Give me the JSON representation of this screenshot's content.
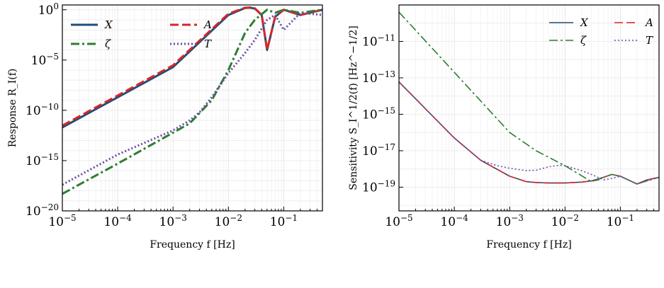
{
  "chart_data": [
    {
      "type": "line",
      "title": "",
      "xlabel": "Frequency f [Hz]",
      "ylabel": "Response R_I(f)",
      "x_scale": "log",
      "y_scale": "log",
      "xlim": [
        1e-05,
        0.5
      ],
      "ylim": [
        1e-20,
        3.0
      ],
      "x_ticks": [
        1e-05,
        0.0001,
        0.001,
        0.01,
        0.1
      ],
      "x_tick_labels": [
        "10^−5",
        "10^−4",
        "10^−3",
        "10^−2",
        "10^−1"
      ],
      "y_ticks": [
        1e-20,
        1e-15,
        1e-10,
        1e-05,
        1
      ],
      "y_tick_labels": [
        "10^−20",
        "10^−15",
        "10^−10",
        "10^−5",
        "10^0"
      ],
      "grid": true,
      "legend_position": "top-left",
      "series": [
        {
          "name": "X",
          "color": "#1f4e79",
          "dash": "solid",
          "x": [
            1e-05,
            0.0001,
            0.001,
            0.01,
            0.02,
            0.025,
            0.03,
            0.04,
            0.05,
            0.07,
            0.1,
            0.2,
            0.5
          ],
          "y": [
            2e-12,
            2e-09,
            2e-06,
            0.3,
            1.5,
            1.6,
            1.3,
            0.3,
            0.0001,
            0.2,
            1.0,
            0.3,
            1.0
          ]
        },
        {
          "name": "A",
          "color": "#d62728",
          "dash": "dashed",
          "x": [
            1e-05,
            0.0001,
            0.001,
            0.01,
            0.02,
            0.025,
            0.03,
            0.04,
            0.05,
            0.07,
            0.1,
            0.2,
            0.5
          ],
          "y": [
            3e-12,
            3e-09,
            3e-06,
            0.4,
            1.6,
            1.7,
            1.4,
            0.3,
            0.0001,
            0.2,
            1.0,
            0.3,
            1.0
          ]
        },
        {
          "name": "ζ",
          "color": "#2e7d32",
          "dash": "dashdot",
          "x": [
            1e-05,
            0.0001,
            0.001,
            0.002,
            0.005,
            0.01,
            0.02,
            0.03,
            0.05,
            0.07,
            0.1,
            0.2,
            0.5
          ],
          "y": [
            5e-19,
            5e-16,
            6e-13,
            5e-12,
            1e-09,
            1e-06,
            0.005,
            0.1,
            1.0,
            0.5,
            1.0,
            0.5,
            1.0
          ]
        },
        {
          "name": "T",
          "color": "#6a4fa3",
          "dash": "dotted",
          "x": [
            1e-05,
            0.0001,
            0.001,
            0.002,
            0.003,
            0.005,
            0.01,
            0.02,
            0.03,
            0.05,
            0.07,
            0.1,
            0.2,
            0.5
          ],
          "y": [
            4e-18,
            4e-15,
            1e-12,
            1e-11,
            6e-11,
            2e-09,
            5e-07,
            5e-05,
            0.001,
            0.1,
            0.3,
            0.01,
            0.5,
            0.3
          ]
        }
      ]
    },
    {
      "type": "line",
      "title": "",
      "xlabel": "Frequency f [Hz]",
      "ylabel": "Sensitivity S_I^1/2(f) [Hz^−1/2]",
      "x_scale": "log",
      "y_scale": "log",
      "xlim": [
        1e-05,
        0.5
      ],
      "ylim": [
        5e-21,
        1e-09
      ],
      "x_ticks": [
        1e-05,
        0.0001,
        0.001,
        0.01,
        0.1
      ],
      "x_tick_labels": [
        "10^−5",
        "10^−4",
        "10^−3",
        "10^−2",
        "10^−1"
      ],
      "y_ticks": [
        1e-19,
        1e-17,
        1e-15,
        1e-13,
        1e-11
      ],
      "y_tick_labels": [
        "10^−19",
        "10^−17",
        "10^−15",
        "10^−13",
        "10^−11"
      ],
      "grid": true,
      "legend_position": "top-right",
      "series": [
        {
          "name": "X",
          "color": "#1f4e79",
          "dash": "solid",
          "x": [
            1e-05,
            3e-05,
            0.0001,
            0.0003,
            0.001,
            0.002,
            0.003,
            0.005,
            0.01,
            0.02,
            0.03,
            0.05,
            0.07,
            0.1,
            0.2,
            0.3,
            0.5
          ],
          "y": [
            6e-14,
            2e-15,
            5e-17,
            3e-18,
            4e-19,
            2e-19,
            1.8e-19,
            1.7e-19,
            1.7e-19,
            1.9e-19,
            2.2e-19,
            3.5e-19,
            5e-19,
            4e-19,
            1.5e-19,
            2.5e-19,
            3.5e-19
          ]
        },
        {
          "name": "A",
          "color": "#d62728",
          "dash": "dashed",
          "x": [
            1e-05,
            3e-05,
            0.0001,
            0.0003,
            0.001,
            0.002,
            0.003,
            0.005,
            0.01,
            0.02,
            0.03,
            0.04,
            0.05,
            0.07,
            0.1,
            0.2,
            0.3,
            0.5
          ],
          "y": [
            6e-14,
            2e-15,
            5e-17,
            3e-18,
            4e-19,
            2e-19,
            1.8e-19,
            1.7e-19,
            1.7e-19,
            1.9e-19,
            2.2e-19,
            2.5e-19,
            3.5e-19,
            5e-19,
            4e-19,
            1.5e-19,
            2.5e-19,
            3.5e-19
          ]
        },
        {
          "name": "ζ",
          "color": "#2e7d32",
          "dash": "dashdot",
          "x": [
            1e-05,
            0.0001,
            0.001,
            0.003,
            0.01,
            0.03,
            0.07,
            0.1,
            0.2,
            0.5
          ],
          "y": [
            4e-10,
            2e-13,
            1e-16,
            1e-17,
            1.5e-18,
            2e-19,
            5e-19,
            4e-19,
            1.5e-19,
            3.5e-19
          ]
        },
        {
          "name": "T",
          "color": "#6a4fa3",
          "dash": "dotted",
          "x": [
            1e-05,
            3e-05,
            0.0001,
            0.0003,
            0.0006,
            0.001,
            0.002,
            0.003,
            0.005,
            0.008,
            0.01,
            0.02,
            0.03,
            0.05,
            0.07,
            0.1,
            0.2,
            0.5
          ],
          "y": [
            6e-14,
            2e-15,
            5e-17,
            3e-18,
            1.5e-18,
            1.1e-18,
            8e-19,
            8.5e-19,
            1.3e-18,
            1.6e-18,
            1.5e-18,
            8e-19,
            5e-19,
            2.5e-19,
            3e-19,
            4e-19,
            1.5e-19,
            3.5e-19
          ]
        }
      ]
    }
  ]
}
